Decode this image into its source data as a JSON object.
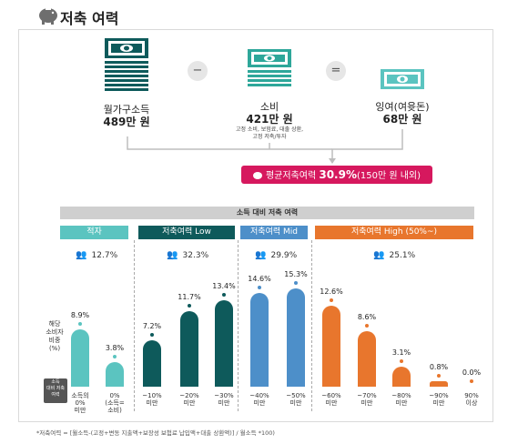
{
  "header": {
    "title": "저축 여력",
    "icon": "piggy-bank-icon"
  },
  "flow": {
    "income": {
      "label": "월가구소득",
      "value": "489만 원"
    },
    "minus": "−",
    "spend": {
      "label": "소비",
      "value": "421만 원",
      "note_line1": "고정 소비, 보험료, 대출 상환,",
      "note_line2": "고정 저축/투자"
    },
    "equals": "=",
    "surplus": {
      "label": "잉여(여윳돈)",
      "value": "68만 원"
    },
    "average_label": "평균저축여력",
    "average_value": "30.9%",
    "average_suffix": "(150만 원 내외)"
  },
  "chart_data": {
    "type": "bar",
    "title": "소득 대비 저축 여력",
    "ylabel": "해당 소비자 비중 (%)",
    "ylabel_line1": "해당",
    "ylabel_line2": "소비자",
    "ylabel_line3": "비중",
    "ylabel_line4": "(%)",
    "x_axis_tag": "소득 대비 저축 여력",
    "x_axis_tag_line1": "소득",
    "x_axis_tag_line2": "대비 저축",
    "x_axis_tag_line3": "여력",
    "groups": [
      {
        "name": "적자",
        "share": "12.7%",
        "color": "#5bc4c0"
      },
      {
        "name": "저축여력 Low",
        "share": "32.3%",
        "color": "#0e5a5b"
      },
      {
        "name": "저축여력 Mid",
        "share": "29.9%",
        "color": "#4d8fc9"
      },
      {
        "name": "저축여력 High (50%~)",
        "share": "25.1%",
        "color": "#e8762d"
      }
    ],
    "categories": [
      "소득의 0% 미만",
      "0% (소득=소비)",
      "~10% 미만",
      "~20% 미만",
      "~30% 미만",
      "~40% 미만",
      "~50% 미만",
      "~60% 미만",
      "~70% 미만",
      "~80% 미만",
      "~90% 미만",
      "90% 이상"
    ],
    "tick_line1": [
      "소득의",
      "0%",
      "~10%",
      "~20%",
      "~30%",
      "~40%",
      "~50%",
      "~60%",
      "~70%",
      "~80%",
      "~90%",
      "90%"
    ],
    "tick_line2": [
      "0%",
      "(소득=",
      "미만",
      "미만",
      "미만",
      "미만",
      "미만",
      "미만",
      "미만",
      "미만",
      "미만",
      "이상"
    ],
    "tick_line3": [
      "미만",
      "소비)",
      "",
      "",
      "",
      "",
      "",
      "",
      "",
      "",
      "",
      ""
    ],
    "values": [
      8.9,
      3.8,
      7.2,
      11.7,
      13.4,
      14.6,
      15.3,
      12.6,
      8.6,
      3.1,
      0.8,
      0.0
    ],
    "value_labels": [
      "8.9%",
      "3.8%",
      "7.2%",
      "11.7%",
      "13.4%",
      "14.6%",
      "15.3%",
      "12.6%",
      "8.6%",
      "3.1%",
      "0.8%",
      "0.0%"
    ],
    "bar_group": [
      0,
      0,
      1,
      1,
      1,
      2,
      2,
      3,
      3,
      3,
      3,
      3
    ],
    "ylim": [
      0,
      16
    ]
  },
  "footnote": "*저축여력 = [월소득-(고정+변동 지출액+보장성 보험료 납입액+대출 상환액)] / 월소득 *100)"
}
